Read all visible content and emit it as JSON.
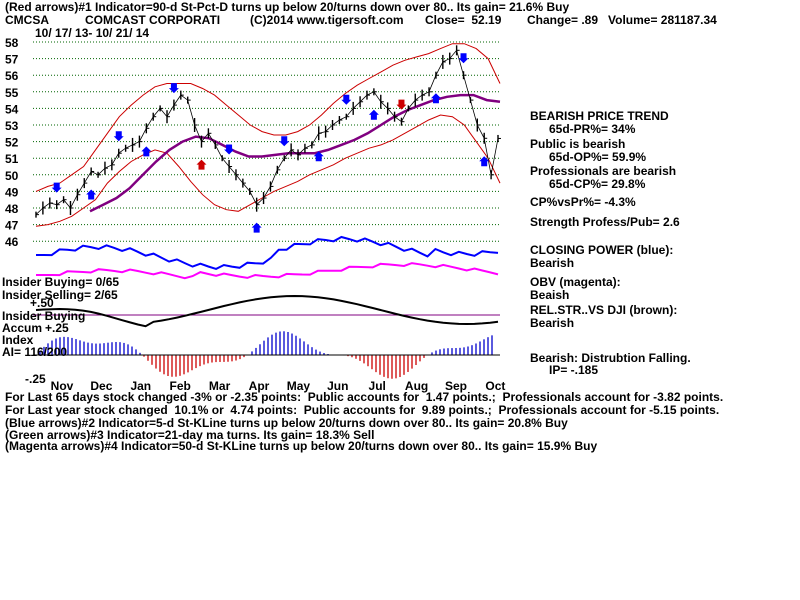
{
  "header": {
    "line1": "(Red arrows)#1 Indicator=90-d St-Pct-D turns up below 20/turns down over 80.. Its gain= 21.6% Buy",
    "ticker": "CMCSA",
    "company": "COMCAST CORPORATI",
    "copyright": "(C)2014 www.tigersoft.com",
    "close": "Close=  52.19",
    "change": "Change= .89",
    "volume": "Volume= 281187.34",
    "date_range": "10/ 17/ 13- 10/ 21/ 14"
  },
  "right_panel": {
    "trend_title": "BEARISH PRICE TREND",
    "pr": "65d-PR%= 34%",
    "public_bearish": "Public is bearish",
    "op": "65d-OP%= 59.9%",
    "pros_bearish": "Professionals are bearish",
    "cp": "65d-CP%= 29.8%",
    "cpvspr": "CP%vsPr%= -4.3%",
    "strength": "Strength Profess/Pub= 2.6",
    "closing_power_title": "CLOSING POWER (blue):",
    "closing_power_value": "Bearish",
    "obv_title": "OBV (magenta):",
    "obv_value": "Beaish",
    "relstr_title": "REL.STR..VS DJI (brown):",
    "relstr_value": "Bearish",
    "dist": "Bearish: Distrubtion Falling.",
    "ip": "IP= -.185"
  },
  "left_labels": {
    "insider_buying": "Insider Buying= 0/65",
    "insider_selling": "Insider Selling= 2/65",
    "plus50": "+.50",
    "insider_buying2": "Insider Buying",
    "accum": "Accum",
    "plus25": "+.25",
    "index": "Index",
    "ai": "AI= 116/200",
    "minus25": "-.25"
  },
  "footer": {
    "line1": "For Last 65 days stock changed -3% or -2.35 points:  Public accounts for  1.47 points.;  Professionals account for -3.82 points.",
    "line2": "For Last year stock changed  10.1% or  4.74 points:  Public accounts for  9.89 points.;  Professionals account for -5.15 points.",
    "line3": "(Blue arrows)#2 Indicator=5-d St-KLine turns up below 20/turns down over 80.. Its gain= 20.8% Buy",
    "line4": "(Green arrows)#3 Indicator=21-day ma turns. Its gain= 18.3% Sell",
    "line5": "(Magenta arrows)#4 Indicator=50-d St-KLine turns up below 20/turns down over 80.. Its gain= 15.9% Buy"
  },
  "colors": {
    "price": "#000000",
    "band": "#cc0000",
    "ma": "#800080",
    "closing_power": "#0000ff",
    "obv": "#ff00ff",
    "grid": "#006400",
    "accum_pos": "#0000cc",
    "accum_neg": "#cc0000",
    "buy_arrow": "#0000ff",
    "sell_arrow": "#cc0000"
  },
  "chart_data": {
    "type": "line",
    "title": "CMCSA COMCAST CORPORATI",
    "xlabel": "",
    "ylabel": "",
    "ylim": [
      46,
      58
    ],
    "grid": true,
    "y_ticks": [
      "58",
      "57",
      "56",
      "55",
      "54",
      "53",
      "52",
      "51",
      "50",
      "49",
      "48",
      "47",
      "46"
    ],
    "x_ticks": [
      "Nov",
      "Dec",
      "Jan",
      "Feb",
      "Mar",
      "Apr",
      "May",
      "Jun",
      "Jul",
      "Aug",
      "Sep",
      "Oct"
    ],
    "price_close": [
      47.6,
      48.0,
      48.3,
      48.2,
      48.5,
      48.0,
      48.8,
      49.5,
      50.2,
      50.0,
      50.4,
      50.6,
      51.3,
      51.6,
      51.8,
      52.0,
      52.8,
      53.5,
      54.0,
      53.5,
      54.2,
      54.8,
      54.5,
      53.0,
      52.0,
      52.5,
      51.8,
      51.0,
      50.5,
      50.0,
      49.5,
      49.0,
      48.2,
      48.6,
      49.3,
      50.3,
      51.0,
      51.5,
      51.2,
      51.6,
      51.8,
      52.5,
      52.6,
      53.0,
      53.3,
      53.5,
      54.0,
      54.4,
      54.8,
      55.0,
      54.4,
      54.0,
      53.5,
      53.2,
      54.0,
      54.5,
      54.8,
      55.0,
      56.0,
      56.8,
      57.0,
      57.5,
      56.0,
      54.5,
      53.0,
      52.2,
      50.0,
      52.19
    ],
    "upper_band": [
      49.0,
      49.3,
      49.5,
      50.0,
      50.5,
      51.5,
      52.5,
      53.5,
      54.2,
      54.8,
      55.3,
      55.5,
      55.5,
      55.5,
      55.2,
      54.8,
      54.2,
      53.6,
      53.0,
      52.6,
      52.4,
      52.4,
      52.6,
      53.0,
      53.6,
      54.3,
      54.9,
      55.4,
      55.8,
      56.2,
      56.6,
      56.9,
      57.1,
      57.3,
      57.6,
      57.9,
      57.9,
      57.6,
      57.0,
      55.5
    ],
    "lower_band": [
      46.9,
      47.0,
      47.2,
      47.5,
      48.0,
      48.5,
      49.5,
      50.2,
      50.8,
      51.2,
      51.5,
      51.3,
      50.5,
      49.6,
      48.8,
      48.2,
      47.9,
      47.8,
      48.2,
      48.6,
      49.0,
      49.3,
      49.6,
      50.0,
      50.3,
      50.6,
      51.0,
      51.3,
      51.6,
      51.8,
      52.1,
      52.5,
      52.9,
      53.3,
      53.6,
      53.5,
      53.0,
      52.0,
      51.0,
      49.5
    ],
    "ma_21": [
      47.8,
      48.2,
      48.6,
      49.2,
      50.0,
      50.8,
      51.5,
      52.0,
      52.3,
      52.2,
      51.8,
      51.4,
      51.1,
      51.1,
      51.2,
      51.3,
      51.3,
      51.3,
      51.5,
      51.8,
      52.1,
      52.5,
      53.0,
      53.5,
      53.9,
      54.2,
      54.5,
      54.7,
      54.8,
      54.8,
      54.5,
      54.4
    ]
  }
}
